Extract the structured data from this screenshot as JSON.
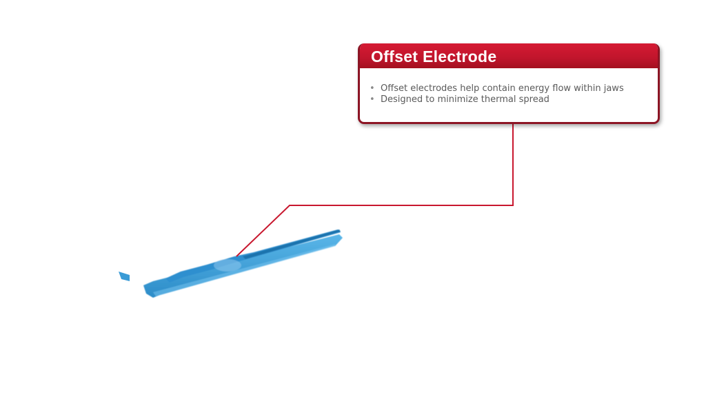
{
  "callout": {
    "title": "Offset Electrode",
    "bullets": [
      "Offset electrodes help contain energy flow within jaws",
      "Designed to minimize thermal spread"
    ]
  },
  "colors": {
    "accent": "#c8172e",
    "accent_dark": "#8c1424",
    "instrument_blue": "#3fa2dc",
    "text_gray": "#5a5a5a"
  },
  "icons": {
    "bullet": "bullet-dot-icon"
  }
}
